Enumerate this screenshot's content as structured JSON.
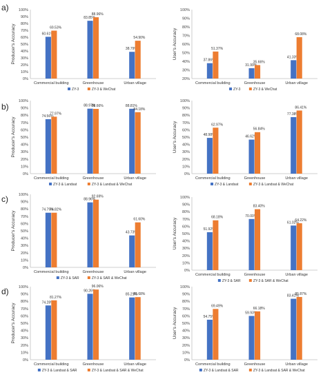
{
  "panel_labels": [
    "a)",
    "b)",
    "c)",
    "d)"
  ],
  "chart_data": [
    {
      "type": "bar",
      "panel": "a",
      "categories": [
        "Commercial building",
        "Greenhouse",
        "Urban village"
      ],
      "ylabel": "Producer's Accuracy",
      "ylim": [
        0,
        100
      ],
      "yticks": [
        "0%",
        "10%",
        "20%",
        "30%",
        "40%",
        "50%",
        "60%",
        "70%",
        "80%",
        "90%",
        "100%"
      ],
      "series": [
        {
          "name": "ZY-3",
          "color": "#4472C4",
          "values": [
            60.61,
            83.85,
            38.79
          ],
          "labels": [
            "60.61%",
            "83.85%",
            "38.79%"
          ]
        },
        {
          "name": "ZY-3 & WeChat",
          "color": "#ED7D31",
          "values": [
            69.53,
            88.96,
            54.9
          ],
          "labels": [
            "69.53%",
            "88.96%",
            "54.90%"
          ]
        }
      ]
    },
    {
      "type": "bar",
      "panel": "a",
      "categories": [
        "Commercial building",
        "Greenhouse",
        "Urban village"
      ],
      "ylabel": "User's Accuracy",
      "ylim": [
        20,
        100
      ],
      "yticks": [
        "20%",
        "30%",
        "40%",
        "50%",
        "60%",
        "70%",
        "80%",
        "90%",
        "100%"
      ],
      "series": [
        {
          "name": "ZY-3",
          "color": "#4472C4",
          "values": [
            37.86,
            31.99,
            41.33
          ],
          "labels": [
            "37.86%",
            "31.99%",
            "41.33%"
          ]
        },
        {
          "name": "ZY-3 & WeChat",
          "color": "#ED7D31",
          "values": [
            51.37,
            35.66,
            68.08
          ],
          "labels": [
            "51.37%",
            "35.66%",
            "68.08%"
          ]
        }
      ]
    },
    {
      "type": "bar",
      "panel": "b",
      "categories": [
        "Commercial building",
        "Greenhouse",
        "Urban village"
      ],
      "ylabel": "Producer's Accuracy",
      "ylim": [
        0,
        100
      ],
      "yticks": [
        "0%",
        "10%",
        "20%",
        "30%",
        "40%",
        "50%",
        "60%",
        "70%",
        "80%",
        "90%",
        "100%"
      ],
      "series": [
        {
          "name": "ZY-3 & Landsat",
          "color": "#4472C4",
          "values": [
            74.56,
            88.97,
            88.81
          ],
          "labels": [
            "74.56%",
            "88.97%",
            "88.81%"
          ]
        },
        {
          "name": "ZY-3 & Landsat & WeChat",
          "color": "#ED7D31",
          "values": [
            77.97,
            88.66,
            84.18
          ],
          "labels": [
            "77.97%",
            "88.66%",
            "84.18%"
          ]
        }
      ]
    },
    {
      "type": "bar",
      "panel": "b",
      "categories": [
        "Commercial building",
        "Greenhouse",
        "Urban village"
      ],
      "ylabel": "User's Accuracy",
      "ylim": [
        0,
        100
      ],
      "yticks": [
        "0%",
        "10%",
        "20%",
        "30%",
        "40%",
        "50%",
        "60%",
        "70%",
        "80%",
        "90%",
        "100%"
      ],
      "series": [
        {
          "name": "ZY-3 & Landsat",
          "color": "#4472C4",
          "values": [
            48.98,
            46.62,
            77.38
          ],
          "labels": [
            "48.98%",
            "46.62%",
            "77.38%"
          ]
        },
        {
          "name": "ZY-3 & Landsat & WeChat",
          "color": "#ED7D31",
          "values": [
            62.97,
            56.84,
            86.41
          ],
          "labels": [
            "62.97%",
            "56.84%",
            "86.41%"
          ]
        }
      ]
    },
    {
      "type": "bar",
      "panel": "c",
      "categories": [
        "Commercial building",
        "Greenhouse",
        "Urban village"
      ],
      "ylabel": "Producer's Accuracy",
      "ylim": [
        0,
        100
      ],
      "yticks": [
        "0%",
        "10%",
        "20%",
        "30%",
        "40%",
        "50%",
        "60%",
        "70%",
        "80%",
        "90%",
        "100%"
      ],
      "series": [
        {
          "name": "ZY-3 & SAR",
          "color": "#4472C4",
          "values": [
            74.79,
            88.96,
            43.73
          ],
          "labels": [
            "74.79%",
            "88.96%",
            "43.73%"
          ]
        },
        {
          "name": "ZY-3 & SAR & WeChat",
          "color": "#ED7D31",
          "values": [
            74.82,
            92.69,
            61.6
          ],
          "labels": [
            "74.82%",
            "92.69%",
            "61.60%"
          ]
        }
      ]
    },
    {
      "type": "bar",
      "panel": "c",
      "categories": [
        "Commercial building",
        "Greenhouse",
        "Urban village"
      ],
      "ylabel": "User's Accuracy",
      "ylim": [
        0,
        100
      ],
      "yticks": [
        "0%",
        "10%",
        "20%",
        "30%",
        "40%",
        "50%",
        "60%",
        "70%",
        "80%",
        "90%",
        "100%"
      ],
      "series": [
        {
          "name": "ZY-3 & SAR",
          "color": "#4472C4",
          "values": [
            51.92,
            70.0,
            61.02
          ],
          "labels": [
            "51.92%",
            "70.00%",
            "61.02%"
          ]
        },
        {
          "name": "ZY-3 & SAR & WeChat",
          "color": "#ED7D31",
          "values": [
            68.18,
            83.4,
            64.22
          ],
          "labels": [
            "68.18%",
            "83.40%",
            "64.22%"
          ]
        }
      ]
    },
    {
      "type": "bar",
      "panel": "d",
      "categories": [
        "Commercial building",
        "Greenhouse",
        "Urban village"
      ],
      "ylabel": "Producer's Accuracy",
      "ylim": [
        0,
        100
      ],
      "yticks": [
        "0%",
        "10%",
        "20%",
        "30%",
        "40%",
        "50%",
        "60%",
        "70%",
        "80%",
        "90%",
        "100%"
      ],
      "series": [
        {
          "name": "ZY-3 & Landsat & SAR",
          "color": "#4472C4",
          "values": [
            74.28,
            90.26,
            85.21
          ],
          "labels": [
            "74.28%",
            "90.26%",
            "85.21%"
          ]
        },
        {
          "name": "ZY-3 & Landsat & SAR & WeChat",
          "color": "#ED7D31",
          "values": [
            81.27,
            96.06,
            85.68
          ],
          "labels": [
            "81.27%",
            "96.06%",
            "85.68%"
          ]
        }
      ]
    },
    {
      "type": "bar",
      "panel": "d",
      "categories": [
        "Commercial building",
        "Greenhouse",
        "Urban village"
      ],
      "ylabel": "User's Accuracy",
      "ylim": [
        0,
        100
      ],
      "yticks": [
        "0%",
        "10%",
        "20%",
        "30%",
        "40%",
        "50%",
        "60%",
        "70%",
        "80%",
        "90%",
        "100%"
      ],
      "series": [
        {
          "name": "ZY-3 & Landsat & SAR",
          "color": "#4472C4",
          "values": [
            54.75,
            59.93,
            83.41
          ],
          "labels": [
            "54.75%",
            "59.93%",
            "83.41%"
          ]
        },
        {
          "name": "ZY-3 & Landsat & SAR & WeChat",
          "color": "#ED7D31",
          "values": [
            69.49,
            66.18,
            85.87
          ],
          "labels": [
            "69.49%",
            "66.18%",
            "85.87%"
          ]
        }
      ]
    }
  ]
}
